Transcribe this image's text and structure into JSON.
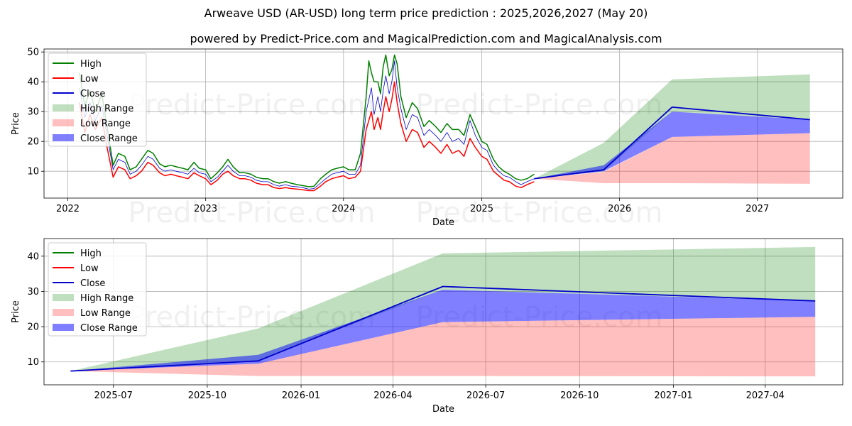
{
  "title": "Arweave USD (AR-USD) long term price prediction : 2025,2026,2027 (May 20)",
  "subtitle": "powered by Predict-Price.com and MagicalPrediction.com and MagicalAnalysis.com",
  "watermark": "Predict-Price.com",
  "colors": {
    "high": "#008000",
    "low": "#ff0000",
    "close": "#0000cc",
    "high_range": "#008000",
    "low_range": "#ff0000",
    "close_range": "#0000ff"
  },
  "legend": {
    "high": "High",
    "low": "Low",
    "close": "Close",
    "high_range": "High Range",
    "low_range": "Low Range",
    "close_range": "Close Range"
  },
  "chart_data": [
    {
      "type": "line",
      "panel": "top",
      "xlabel": "Date",
      "ylabel": "Price",
      "xlim": [
        "2021-10-30",
        "2027-08-15"
      ],
      "ylim": [
        1,
        51
      ],
      "xticks": [
        {
          "date": "2022-01-01",
          "label": "2022"
        },
        {
          "date": "2023-01-01",
          "label": "2023"
        },
        {
          "date": "2024-01-01",
          "label": "2024"
        },
        {
          "date": "2025-01-01",
          "label": "2025"
        },
        {
          "date": "2026-01-01",
          "label": "2026"
        },
        {
          "date": "2027-01-01",
          "label": "2027"
        }
      ],
      "yticks": [
        10,
        20,
        30,
        40,
        50
      ],
      "legend_position": "top-left",
      "grid": true,
      "history": {
        "dates": [
          "2022-02-01",
          "2022-02-15",
          "2022-03-01",
          "2022-03-15",
          "2022-04-01",
          "2022-04-15",
          "2022-05-01",
          "2022-05-15",
          "2022-06-01",
          "2022-06-15",
          "2022-07-01",
          "2022-07-15",
          "2022-08-01",
          "2022-08-15",
          "2022-09-01",
          "2022-09-15",
          "2022-10-01",
          "2022-10-15",
          "2022-11-01",
          "2022-11-15",
          "2022-12-01",
          "2022-12-15",
          "2023-01-01",
          "2023-01-15",
          "2023-02-01",
          "2023-02-15",
          "2023-03-01",
          "2023-03-15",
          "2023-04-01",
          "2023-04-15",
          "2023-05-01",
          "2023-05-15",
          "2023-06-01",
          "2023-06-15",
          "2023-07-01",
          "2023-07-15",
          "2023-08-01",
          "2023-08-15",
          "2023-09-01",
          "2023-09-15",
          "2023-10-01",
          "2023-10-15",
          "2023-11-01",
          "2023-11-15",
          "2023-12-01",
          "2023-12-15",
          "2024-01-01",
          "2024-01-15",
          "2024-02-01",
          "2024-02-15",
          "2024-03-01",
          "2024-03-08",
          "2024-03-15",
          "2024-03-22",
          "2024-04-01",
          "2024-04-08",
          "2024-04-15",
          "2024-04-22",
          "2024-05-01",
          "2024-05-08",
          "2024-05-15",
          "2024-05-22",
          "2024-06-01",
          "2024-06-15",
          "2024-07-01",
          "2024-07-15",
          "2024-08-01",
          "2024-08-15",
          "2024-09-01",
          "2024-09-15",
          "2024-10-01",
          "2024-10-15",
          "2024-11-01",
          "2024-11-15",
          "2024-12-01",
          "2024-12-15",
          "2025-01-01",
          "2025-01-15",
          "2025-02-01",
          "2025-02-15",
          "2025-03-01",
          "2025-03-15",
          "2025-04-01",
          "2025-04-15",
          "2025-05-01",
          "2025-05-20"
        ],
        "close": [
          38,
          28,
          33,
          27,
          32,
          22,
          10.5,
          14,
          13,
          9,
          10,
          12,
          15,
          14,
          11,
          10,
          10.5,
          10,
          9.5,
          9,
          11,
          9.5,
          9,
          6.5,
          8,
          10,
          12,
          10,
          8.5,
          8.5,
          8,
          7,
          6.5,
          6.5,
          5.5,
          5,
          5.5,
          5,
          4.8,
          4.5,
          4,
          4.2,
          6,
          7.5,
          9,
          9.5,
          10,
          9,
          9,
          12,
          30,
          34,
          38,
          29,
          35,
          30,
          37,
          42,
          36,
          40,
          47,
          38,
          31,
          24,
          29,
          28,
          22,
          24,
          22,
          20,
          23,
          20,
          21,
          19,
          27,
          22,
          18,
          17,
          12,
          10,
          8.5,
          8,
          6.5,
          5.5,
          6.5,
          7.5
        ],
        "high": [
          43,
          32,
          37,
          30,
          36,
          25,
          12,
          16,
          15,
          10.5,
          11.5,
          14,
          17,
          16,
          12.5,
          11.5,
          12,
          11.5,
          11,
          10.5,
          13,
          11,
          10.5,
          7.5,
          9.5,
          11.5,
          14,
          11.5,
          9.5,
          9.5,
          9,
          8,
          7.5,
          7.5,
          6.5,
          6,
          6.5,
          6,
          5.5,
          5.2,
          4.8,
          5,
          7.5,
          9,
          10.5,
          11,
          11.5,
          10.5,
          10.5,
          16,
          35,
          47,
          43,
          40,
          40,
          36,
          45,
          49,
          42,
          44,
          49,
          46,
          35,
          28,
          33,
          31,
          25,
          27,
          25,
          23,
          26,
          24,
          24,
          22,
          29,
          25,
          20,
          19,
          14,
          11.5,
          10,
          9,
          7.5,
          7,
          7.5,
          9
        ],
        "low": [
          33,
          23,
          29,
          24,
          28,
          18,
          8,
          11.5,
          10.5,
          7.5,
          8.5,
          10,
          13,
          12,
          9.5,
          8.5,
          9,
          8.5,
          8,
          7.5,
          9.5,
          8.5,
          7.5,
          5.5,
          7,
          9,
          10,
          8.5,
          7.5,
          7.5,
          7,
          6,
          5.5,
          5.5,
          4.5,
          4.2,
          4.5,
          4.2,
          4,
          3.8,
          3.5,
          3.5,
          5,
          6.5,
          7.5,
          8,
          8.5,
          7.5,
          8,
          10,
          24,
          27,
          30,
          24,
          28,
          24,
          30,
          35,
          30,
          34,
          40,
          33,
          26,
          20,
          24,
          23,
          18,
          20,
          18,
          16,
          19,
          16,
          17,
          15,
          21,
          18,
          15,
          14,
          10,
          8.5,
          7,
          6.5,
          5,
          4.5,
          5.5,
          6.5
        ]
      },
      "forecast": {
        "dates": [
          "2025-05-20",
          "2025-11-20",
          "2026-05-20",
          "2027-05-20"
        ],
        "close": [
          7.5,
          10.5,
          31.5,
          27.3
        ],
        "close_range_low": [
          7.5,
          10,
          21.5,
          22.8
        ],
        "close_range_high": [
          7.5,
          12,
          30,
          27.3
        ],
        "high_range_low": [
          7.5,
          10,
          30,
          27.3
        ],
        "high_range_high": [
          7.5,
          19.5,
          40.8,
          42.5
        ],
        "low_range_low": [
          7.5,
          6,
          6,
          5.8
        ],
        "low_range_high": [
          7.5,
          9.8,
          21.5,
          22.8
        ]
      }
    },
    {
      "type": "line",
      "panel": "bottom",
      "xlabel": "Date",
      "ylabel": "Price",
      "xlim": [
        "2025-04-24",
        "2027-06-16"
      ],
      "ylim": [
        3.5,
        45
      ],
      "xticks": [
        {
          "date": "2025-07-01",
          "label": "2025-07"
        },
        {
          "date": "2025-10-01",
          "label": "2025-10"
        },
        {
          "date": "2026-01-01",
          "label": "2026-01"
        },
        {
          "date": "2026-04-01",
          "label": "2026-04"
        },
        {
          "date": "2026-07-01",
          "label": "2026-07"
        },
        {
          "date": "2026-10-01",
          "label": "2026-10"
        },
        {
          "date": "2027-01-01",
          "label": "2027-01"
        },
        {
          "date": "2027-04-01",
          "label": "2027-04"
        }
      ],
      "yticks": [
        10,
        20,
        30,
        40
      ],
      "legend_position": "top-left",
      "grid": true,
      "forecast": {
        "dates": [
          "2025-05-20",
          "2025-11-20",
          "2026-05-20",
          "2027-05-20"
        ],
        "close": [
          7.4,
          10.3,
          31.4,
          27.3
        ],
        "close_range_low": [
          7.4,
          9.5,
          21.3,
          22.8
        ],
        "close_range_high": [
          7.4,
          12,
          30.5,
          27.3
        ],
        "high_range_low": [
          7.4,
          10.5,
          30.5,
          27.3
        ],
        "high_range_high": [
          7.4,
          19.5,
          40.8,
          42.6
        ],
        "low_range_low": [
          7.4,
          6,
          6,
          5.9
        ],
        "low_range_high": [
          7.4,
          9.5,
          21.3,
          22.8
        ]
      }
    }
  ]
}
